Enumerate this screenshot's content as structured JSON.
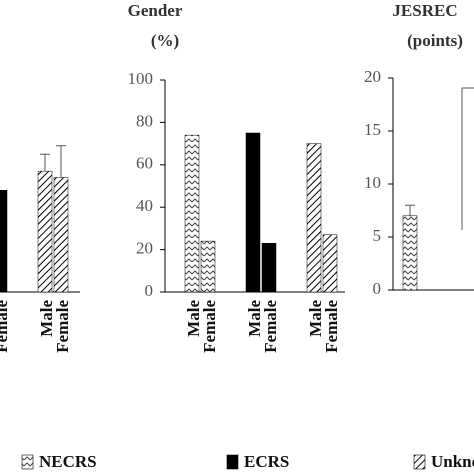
{
  "chart_data": [
    {
      "type": "bar",
      "categories": [
        "Male",
        "Female"
      ],
      "series": [
        {
          "name": "ECRS",
          "pattern": "solid",
          "color": "#000000",
          "values": [
            null,
            48
          ]
        },
        {
          "name": "Unknown",
          "pattern": "diagonal",
          "color": "#000000",
          "values": [
            57,
            54
          ],
          "errors": [
            8,
            15
          ]
        }
      ],
      "ylim": [
        0,
        100
      ]
    },
    {
      "type": "bar",
      "title": "Gender",
      "subtitle": "(%)",
      "categories": [
        "Male",
        "Female"
      ],
      "series": [
        {
          "name": "NECRS",
          "pattern": "zigzag",
          "color": "#000000",
          "values": [
            74,
            24
          ]
        },
        {
          "name": "ECRS",
          "pattern": "solid",
          "color": "#000000",
          "values": [
            75,
            23
          ]
        },
        {
          "name": "Unknown",
          "pattern": "diagonal",
          "color": "#000000",
          "values": [
            70,
            27
          ]
        }
      ],
      "ylim": [
        0,
        100
      ],
      "yticks": [
        0,
        20,
        40,
        60,
        80,
        100
      ],
      "legend": "bottom"
    },
    {
      "type": "bar",
      "title": "JESREC",
      "subtitle": "(points)",
      "series": [
        {
          "name": "NECRS",
          "pattern": "zigzag",
          "color": "#000000",
          "values": [
            7
          ],
          "errors": [
            1
          ]
        }
      ],
      "ylim": [
        0,
        20
      ],
      "yticks": [
        0,
        5,
        10,
        15,
        20
      ]
    }
  ]
}
